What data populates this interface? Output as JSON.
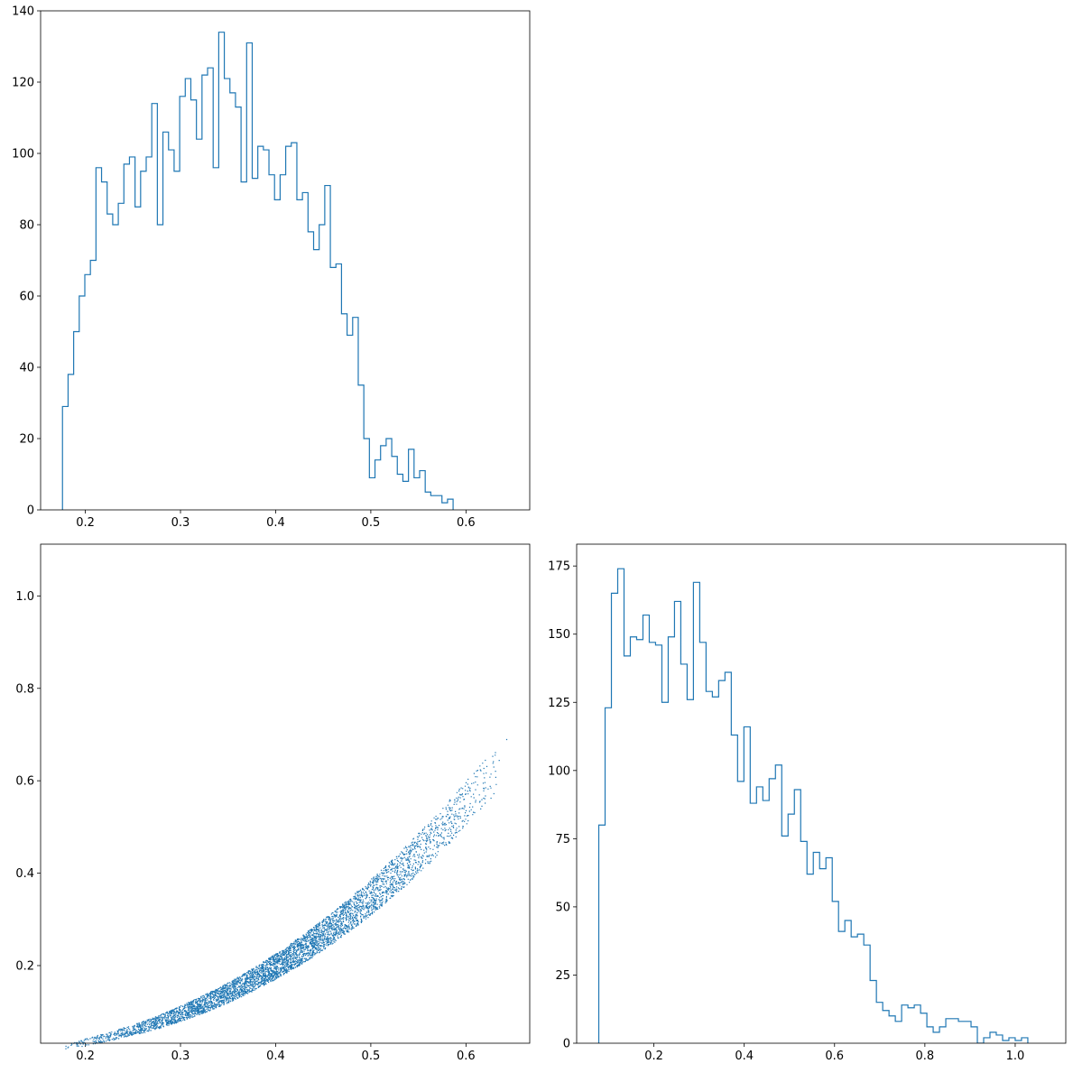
{
  "figure": {
    "line_color": "#1f77b4",
    "axis_color": "#000000"
  },
  "chart_data": [
    {
      "type": "bar",
      "histtype": "step",
      "title": "",
      "xlabel": "",
      "ylabel": "",
      "xlim": [
        0.153,
        0.667
      ],
      "ylim": [
        0,
        140
      ],
      "xticks": [
        0.2,
        0.3,
        0.4,
        0.5,
        0.6
      ],
      "yticks": [
        0,
        20,
        40,
        60,
        80,
        100,
        120,
        140
      ],
      "bins": {
        "start": 0.176,
        "width": 0.005864,
        "counts": [
          29,
          38,
          50,
          60,
          66,
          70,
          96,
          92,
          83,
          80,
          86,
          97,
          99,
          85,
          95,
          99,
          114,
          80,
          106,
          101,
          95,
          116,
          121,
          115,
          104,
          122,
          124,
          96,
          134,
          121,
          117,
          113,
          92,
          131,
          93,
          102,
          101,
          94,
          87,
          94,
          102,
          103,
          87,
          89,
          78,
          73,
          80,
          91,
          68,
          69,
          55,
          49,
          54,
          35,
          20,
          9,
          14,
          18,
          20,
          15,
          10,
          8,
          17,
          9,
          11,
          5,
          4,
          4,
          2,
          3
        ]
      }
    },
    {
      "type": "scatter",
      "title": "",
      "xlabel": "",
      "ylabel": "",
      "xlim": [
        0.153,
        0.667
      ],
      "ylim": [
        0.032,
        1.112
      ],
      "xticks": [
        0.2,
        0.3,
        0.4,
        0.5,
        0.6
      ],
      "yticks": [
        0.2,
        0.4,
        0.6,
        0.8,
        1.0
      ],
      "n_points": 5000,
      "relation": {
        "x_range": [
          0.176,
          0.645
        ],
        "y_lower": "1.95*x^2.65",
        "y_upper": "2.05*x^2.4"
      }
    },
    {
      "type": "bar",
      "histtype": "step",
      "title": "",
      "xlabel": "",
      "ylabel": "",
      "xlim": [
        0.029,
        1.112
      ],
      "ylim": [
        0,
        183
      ],
      "xticks": [
        0.2,
        0.4,
        0.6,
        0.8,
        1.0
      ],
      "yticks": [
        0,
        25,
        50,
        75,
        100,
        125,
        150,
        175
      ],
      "bins": {
        "start": 0.078,
        "width": 0.01397,
        "counts": [
          80,
          123,
          165,
          174,
          142,
          149,
          148,
          157,
          147,
          146,
          125,
          149,
          162,
          139,
          126,
          169,
          147,
          129,
          127,
          133,
          136,
          113,
          96,
          116,
          88,
          94,
          89,
          97,
          102,
          76,
          84,
          93,
          74,
          62,
          70,
          64,
          68,
          52,
          41,
          45,
          39,
          40,
          36,
          23,
          15,
          12,
          10,
          8,
          14,
          13,
          14,
          11,
          6,
          4,
          6,
          9,
          9,
          8,
          8,
          6,
          0,
          2,
          4,
          3,
          1,
          2,
          1,
          2
        ]
      }
    }
  ]
}
